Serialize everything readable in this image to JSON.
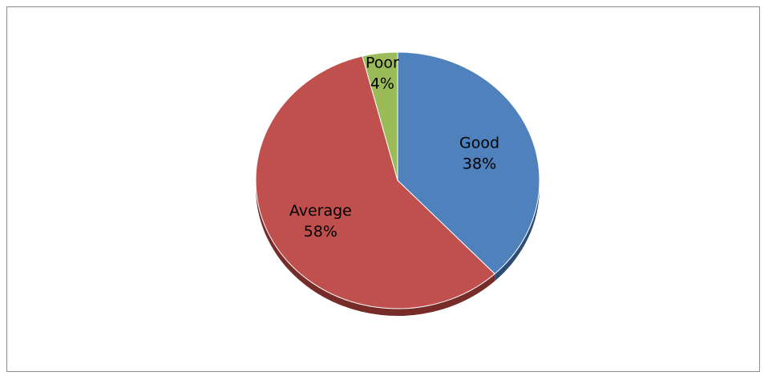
{
  "chart_data": {
    "type": "pie",
    "title": "",
    "categories": [
      "Good",
      "Average",
      "Poor"
    ],
    "values": [
      38,
      58,
      4
    ],
    "labels": [
      "38%",
      "58%",
      "4%"
    ],
    "colors": [
      "#4F81BD",
      "#C0504D",
      "#9BBB59"
    ],
    "side_colors": [
      "#2C4D75",
      "#772C2A",
      "#5F7530"
    ],
    "start_at": "12 o'clock",
    "direction": "clockwise",
    "legend": "none",
    "style": "3d"
  }
}
